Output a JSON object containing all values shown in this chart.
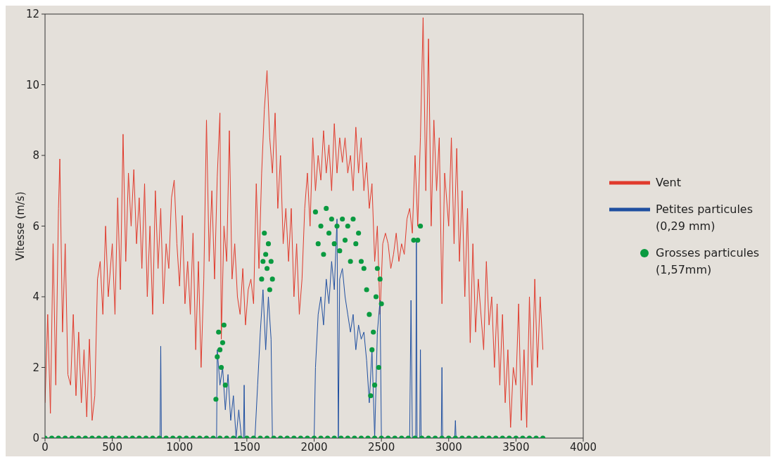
{
  "chart_data": {
    "type": "line",
    "ylabel": "Vitesse (m/s)",
    "xlim": [
      0,
      4000
    ],
    "xticks": [
      0,
      500,
      1000,
      1500,
      2000,
      2500,
      3000,
      3500,
      4000
    ],
    "ylim": [
      0,
      12
    ],
    "yticks": [
      0,
      2,
      4,
      6,
      8,
      10,
      12
    ],
    "legend": "right",
    "line_style": "solid",
    "series": [
      {
        "name": "Vent",
        "color": "#e03a2c",
        "x": [
          0,
          20,
          40,
          60,
          80,
          100,
          110,
          130,
          150,
          170,
          190,
          210,
          230,
          250,
          270,
          290,
          310,
          330,
          350,
          370,
          390,
          410,
          430,
          450,
          470,
          500,
          520,
          540,
          560,
          580,
          600,
          620,
          640,
          660,
          680,
          700,
          720,
          740,
          760,
          780,
          800,
          820,
          840,
          860,
          880,
          900,
          920,
          940,
          960,
          980,
          1000,
          1020,
          1040,
          1060,
          1080,
          1100,
          1120,
          1140,
          1160,
          1180,
          1200,
          1220,
          1240,
          1260,
          1280,
          1300,
          1310,
          1330,
          1350,
          1370,
          1390,
          1410,
          1430,
          1450,
          1470,
          1490,
          1510,
          1530,
          1550,
          1570,
          1590,
          1610,
          1630,
          1650,
          1670,
          1690,
          1710,
          1730,
          1750,
          1770,
          1790,
          1810,
          1830,
          1850,
          1870,
          1890,
          1910,
          1930,
          1950,
          1970,
          1990,
          2010,
          2030,
          2050,
          2070,
          2090,
          2110,
          2130,
          2150,
          2170,
          2190,
          2210,
          2230,
          2250,
          2270,
          2290,
          2310,
          2330,
          2350,
          2370,
          2390,
          2410,
          2430,
          2450,
          2470,
          2490,
          2510,
          2530,
          2550,
          2570,
          2590,
          2610,
          2630,
          2650,
          2670,
          2690,
          2710,
          2730,
          2750,
          2770,
          2790,
          2810,
          2830,
          2850,
          2870,
          2890,
          2910,
          2930,
          2950,
          2970,
          3000,
          3020,
          3040,
          3060,
          3080,
          3100,
          3120,
          3140,
          3160,
          3180,
          3200,
          3220,
          3260,
          3280,
          3300,
          3320,
          3340,
          3360,
          3380,
          3400,
          3420,
          3440,
          3460,
          3480,
          3500,
          3520,
          3540,
          3560,
          3580,
          3600,
          3620,
          3640,
          3660,
          3680,
          3700
        ],
        "values": [
          1.0,
          3.5,
          0.7,
          5.5,
          1.5,
          6.5,
          7.9,
          3.0,
          5.5,
          1.8,
          1.5,
          3.5,
          1.2,
          3.0,
          1.0,
          2.5,
          0.6,
          2.8,
          0.5,
          1.2,
          4.5,
          5.0,
          3.5,
          6.0,
          4.0,
          5.5,
          3.5,
          6.8,
          4.2,
          8.6,
          5.0,
          7.5,
          6.0,
          7.6,
          5.5,
          6.8,
          4.8,
          7.2,
          4.0,
          6.0,
          3.5,
          7.0,
          4.8,
          6.5,
          3.8,
          5.5,
          4.8,
          6.8,
          7.3,
          5.5,
          4.3,
          6.3,
          3.8,
          5.0,
          3.5,
          5.8,
          2.5,
          5.0,
          2.0,
          4.5,
          9.0,
          5.0,
          7.0,
          4.5,
          7.4,
          9.2,
          2.8,
          6.0,
          5.0,
          8.7,
          4.5,
          5.5,
          4.0,
          3.5,
          4.8,
          3.2,
          4.2,
          4.5,
          3.8,
          7.2,
          4.8,
          7.5,
          9.3,
          10.4,
          8.5,
          7.5,
          9.2,
          6.5,
          8.0,
          5.5,
          6.5,
          5.0,
          6.5,
          4.0,
          5.5,
          3.5,
          4.5,
          6.5,
          7.5,
          6.0,
          8.5,
          7.0,
          8.0,
          7.3,
          8.7,
          7.5,
          8.3,
          7.0,
          8.9,
          7.5,
          8.5,
          7.8,
          8.5,
          7.5,
          8.0,
          7.0,
          8.8,
          7.5,
          8.5,
          7.0,
          7.8,
          6.5,
          7.2,
          5.0,
          6.0,
          3.5,
          5.5,
          5.8,
          5.5,
          4.8,
          5.2,
          5.8,
          5.0,
          5.5,
          5.2,
          6.2,
          6.5,
          5.8,
          8.0,
          6.0,
          8.5,
          11.9,
          7.0,
          11.3,
          6.0,
          9.0,
          7.0,
          8.5,
          3.8,
          7.5,
          6.0,
          8.5,
          5.5,
          8.2,
          5.0,
          7.0,
          4.0,
          6.5,
          2.7,
          5.5,
          3.0,
          4.5,
          2.5,
          5.0,
          3.2,
          4.0,
          2.0,
          3.8,
          1.5,
          3.5,
          1.0,
          2.5,
          0.3,
          2.0,
          1.5,
          3.8,
          0.5,
          2.5,
          0.3,
          4.0,
          1.5,
          4.5,
          2.0,
          4.0,
          2.5
        ]
      },
      {
        "name": "Petites particules (0,29 mm)",
        "color": "#1f4fa0",
        "x": [
          0,
          855,
          860,
          865,
          1275,
          1280,
          1300,
          1320,
          1340,
          1360,
          1380,
          1400,
          1420,
          1440,
          1460,
          1475,
          1480,
          1485,
          1560,
          1580,
          1600,
          1620,
          1640,
          1660,
          1680,
          1690,
          1695,
          2000,
          2010,
          2030,
          2050,
          2070,
          2090,
          2110,
          2130,
          2150,
          2170,
          2180,
          2190,
          2210,
          2230,
          2250,
          2270,
          2290,
          2310,
          2330,
          2350,
          2370,
          2390,
          2410,
          2430,
          2450,
          2470,
          2490,
          2500,
          2710,
          2720,
          2730,
          2755,
          2760,
          2765,
          2785,
          2790,
          2795,
          2945,
          2950,
          2955,
          3045,
          3050,
          3055,
          3700
        ],
        "values": [
          0,
          0,
          2.6,
          0,
          0,
          2.5,
          1.5,
          2.0,
          0.8,
          1.8,
          0.5,
          1.2,
          0,
          0.8,
          0,
          0,
          1.5,
          0,
          0,
          1.5,
          3.0,
          4.2,
          2.5,
          4.0,
          2.8,
          0,
          0,
          0,
          2.0,
          3.5,
          4.0,
          3.2,
          4.5,
          3.8,
          5.0,
          4.2,
          6.2,
          0,
          4.5,
          4.8,
          4.0,
          3.5,
          3.0,
          3.5,
          2.5,
          3.2,
          2.8,
          3.0,
          2.2,
          1.0,
          2.5,
          0,
          3.0,
          3.9,
          0,
          0,
          3.9,
          0,
          0,
          5.6,
          0,
          0,
          2.5,
          0,
          0,
          2.0,
          0,
          0,
          0.5,
          0,
          0
        ]
      },
      {
        "name": "Grosses particules (1,57mm)",
        "type": "scatter",
        "marker": "circle",
        "color": "#0a9a40",
        "x": [
          0,
          50,
          100,
          150,
          200,
          250,
          300,
          350,
          400,
          450,
          500,
          550,
          600,
          650,
          700,
          750,
          800,
          850,
          900,
          950,
          1000,
          1050,
          1100,
          1150,
          1200,
          1250,
          1300,
          1350,
          1400,
          1450,
          1500,
          1550,
          1600,
          1650,
          1700,
          1750,
          1800,
          1850,
          1900,
          1950,
          2000,
          2050,
          2100,
          2150,
          2200,
          2250,
          2300,
          2350,
          2400,
          2450,
          2500,
          2550,
          2600,
          2650,
          2700,
          2750,
          2800,
          2850,
          2900,
          2950,
          3000,
          3050,
          3100,
          3150,
          3200,
          3250,
          3300,
          3350,
          3400,
          3450,
          3500,
          3550,
          3600,
          3650,
          3700,
          1270,
          1280,
          1290,
          1300,
          1310,
          1320,
          1330,
          1340,
          1610,
          1620,
          1630,
          1640,
          1650,
          1660,
          1670,
          1680,
          1690,
          2010,
          2030,
          2050,
          2070,
          2090,
          2110,
          2130,
          2150,
          2170,
          2190,
          2210,
          2230,
          2250,
          2270,
          2290,
          2310,
          2330,
          2350,
          2370,
          2390,
          2410,
          2420,
          2430,
          2440,
          2450,
          2460,
          2470,
          2480,
          2490,
          2500,
          2740,
          2770,
          2790
        ],
        "values": [
          0,
          0,
          0,
          0,
          0,
          0,
          0,
          0,
          0,
          0,
          0,
          0,
          0,
          0,
          0,
          0,
          0,
          0,
          0,
          0,
          0,
          0,
          0,
          0,
          0,
          0,
          0,
          0,
          0,
          0,
          0,
          0,
          0,
          0,
          0,
          0,
          0,
          0,
          0,
          0,
          0,
          0,
          0,
          0,
          0,
          0,
          0,
          0,
          0,
          0,
          0,
          0,
          0,
          0,
          0,
          0,
          0,
          0,
          0,
          0,
          0,
          0,
          0,
          0,
          0,
          0,
          0,
          0,
          0,
          0,
          0,
          0,
          0,
          0,
          0,
          1.1,
          2.3,
          3.0,
          2.5,
          2.0,
          2.7,
          3.2,
          1.5,
          4.5,
          5.0,
          5.8,
          5.2,
          4.8,
          5.5,
          4.2,
          5.0,
          4.5,
          6.4,
          5.5,
          6.0,
          5.2,
          6.5,
          5.8,
          6.2,
          5.5,
          6.0,
          5.3,
          6.2,
          5.6,
          6.0,
          5.0,
          6.2,
          5.5,
          5.8,
          5.0,
          4.8,
          4.2,
          3.5,
          1.2,
          2.5,
          3.0,
          1.5,
          4.0,
          4.8,
          2.0,
          4.5,
          3.8,
          5.6,
          5.6,
          6.0
        ]
      }
    ]
  }
}
